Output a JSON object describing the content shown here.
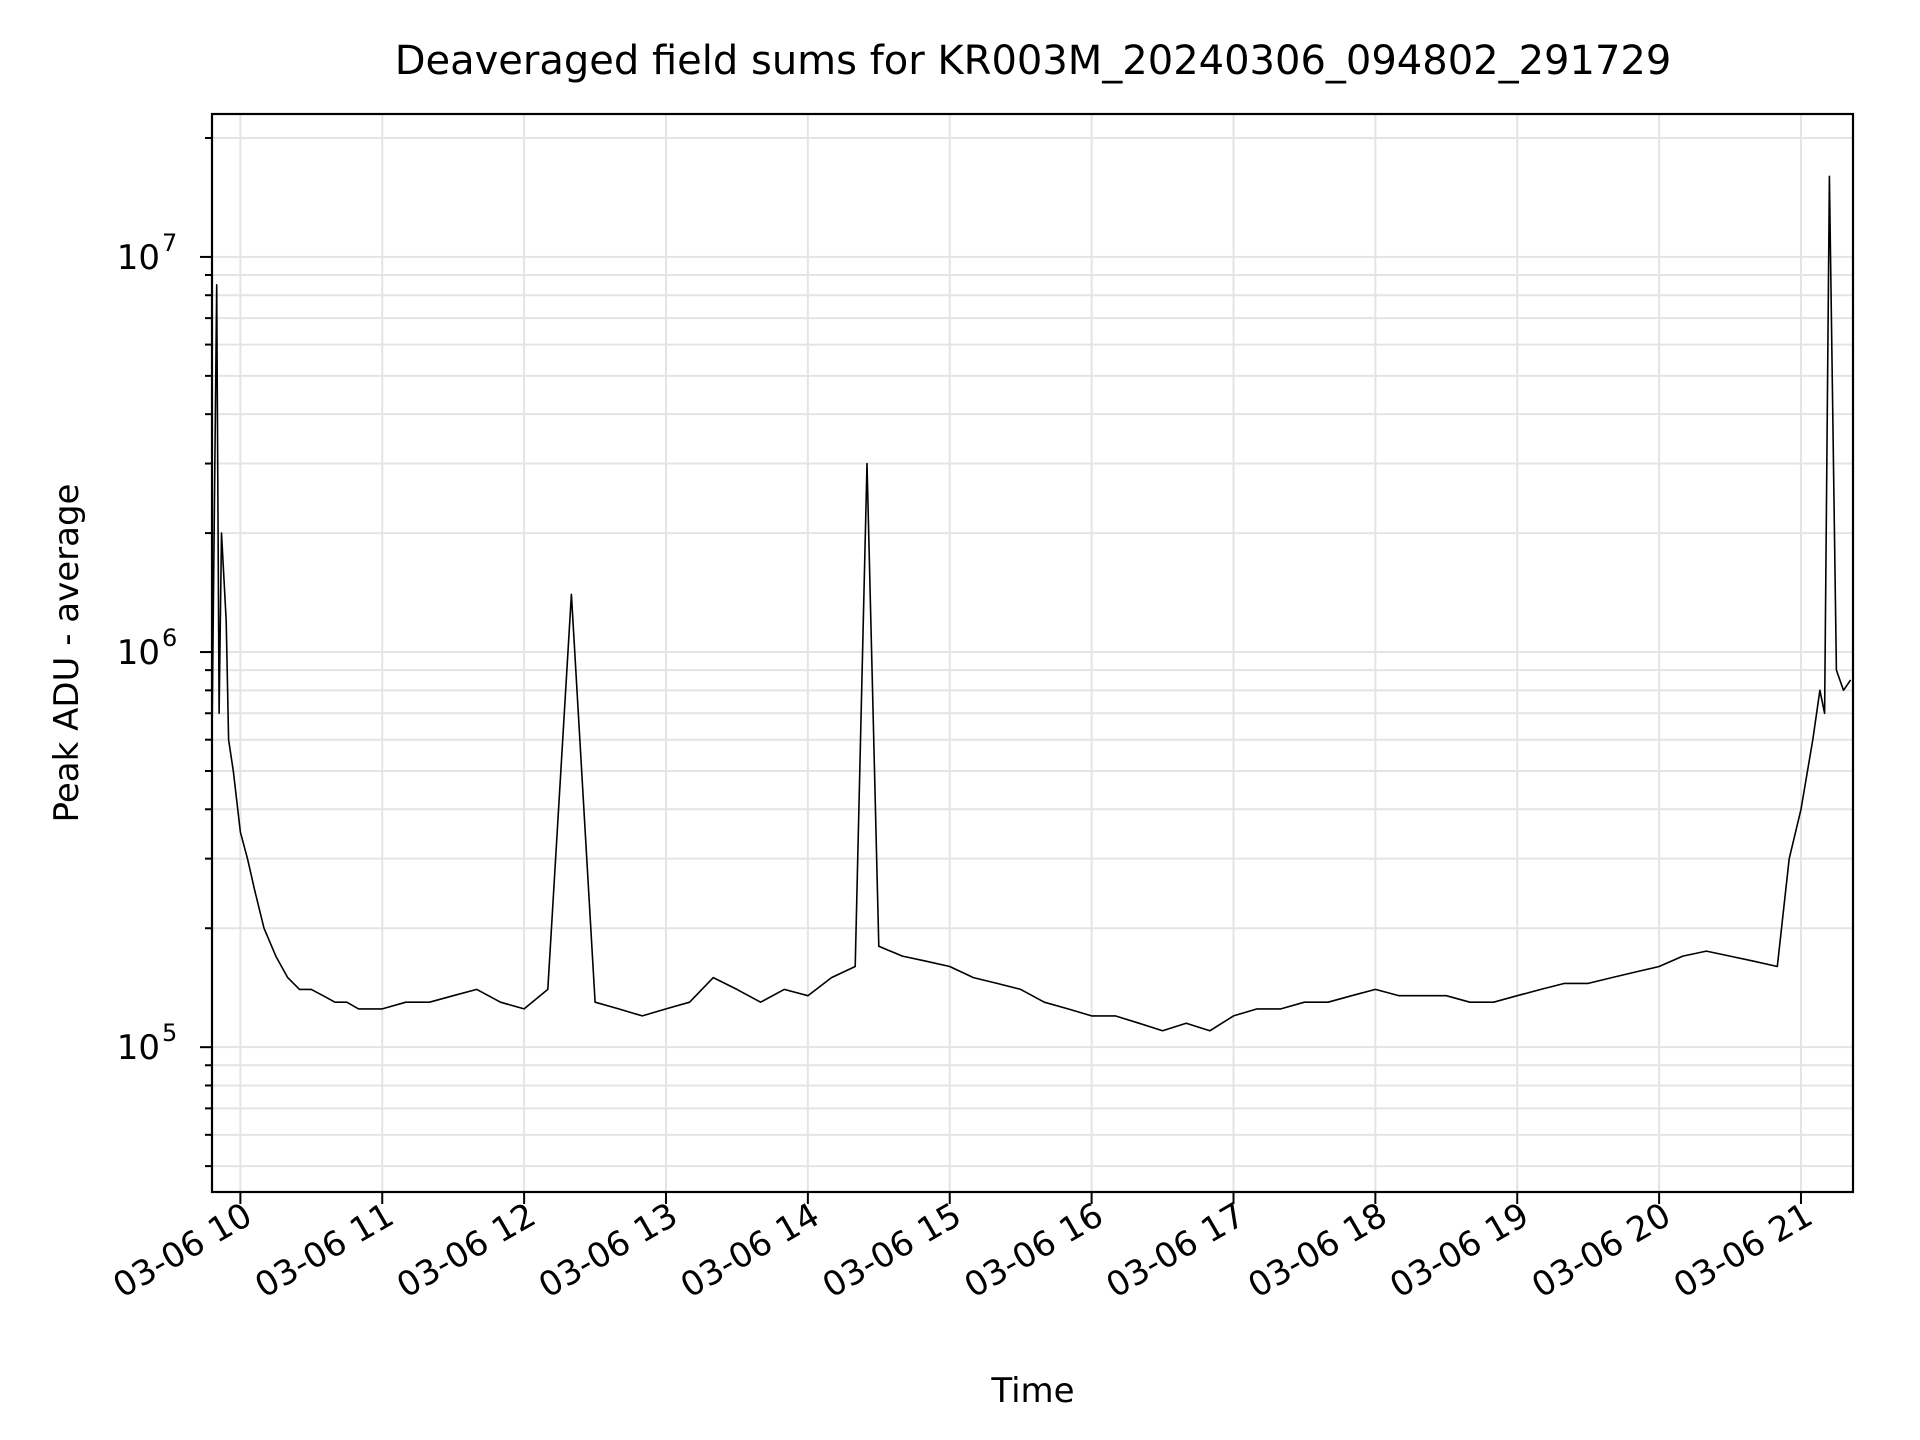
{
  "chart_data": {
    "type": "line",
    "title": "Deaveraged field sums for KR003M_20240306_094802_291729",
    "xlabel": "Time",
    "ylabel": "Peak ADU - average",
    "yscale": "log",
    "xlim": [
      "2024-03-06 09:48",
      "2024-03-06 21:22"
    ],
    "ylim": [
      43000,
      23000000
    ],
    "x_ticks": [
      {
        "label": "03-06 10",
        "value": "2024-03-06 10:00"
      },
      {
        "label": "03-06 11",
        "value": "2024-03-06 11:00"
      },
      {
        "label": "03-06 12",
        "value": "2024-03-06 12:00"
      },
      {
        "label": "03-06 13",
        "value": "2024-03-06 13:00"
      },
      {
        "label": "03-06 14",
        "value": "2024-03-06 14:00"
      },
      {
        "label": "03-06 15",
        "value": "2024-03-06 15:00"
      },
      {
        "label": "03-06 16",
        "value": "2024-03-06 16:00"
      },
      {
        "label": "03-06 17",
        "value": "2024-03-06 17:00"
      },
      {
        "label": "03-06 18",
        "value": "2024-03-06 18:00"
      },
      {
        "label": "03-06 19",
        "value": "2024-03-06 19:00"
      },
      {
        "label": "03-06 20",
        "value": "2024-03-06 20:00"
      },
      {
        "label": "03-06 21",
        "value": "2024-03-06 21:00"
      }
    ],
    "y_ticks": [
      {
        "base": "10",
        "exp": "5",
        "value": 100000
      },
      {
        "base": "10",
        "exp": "6",
        "value": 1000000
      },
      {
        "base": "10",
        "exp": "7",
        "value": 10000000
      }
    ],
    "grid": true,
    "line_color": "#000000",
    "series": [
      {
        "x": [
          "2024-03-06 09:48",
          "2024-03-06 09:50",
          "2024-03-06 09:51",
          "2024-03-06 09:52",
          "2024-03-06 09:54",
          "2024-03-06 09:55",
          "2024-03-06 09:57",
          "2024-03-06 10:00",
          "2024-03-06 10:03",
          "2024-03-06 10:06",
          "2024-03-06 10:10",
          "2024-03-06 10:15",
          "2024-03-06 10:20",
          "2024-03-06 10:25",
          "2024-03-06 10:30",
          "2024-03-06 10:35",
          "2024-03-06 10:40",
          "2024-03-06 10:45",
          "2024-03-06 10:50",
          "2024-03-06 11:00",
          "2024-03-06 11:10",
          "2024-03-06 11:20",
          "2024-03-06 11:30",
          "2024-03-06 11:40",
          "2024-03-06 11:50",
          "2024-03-06 12:00",
          "2024-03-06 12:10",
          "2024-03-06 12:20",
          "2024-03-06 12:30",
          "2024-03-06 12:40",
          "2024-03-06 12:50",
          "2024-03-06 13:00",
          "2024-03-06 13:10",
          "2024-03-06 13:20",
          "2024-03-06 13:30",
          "2024-03-06 13:40",
          "2024-03-06 13:50",
          "2024-03-06 14:00",
          "2024-03-06 14:10",
          "2024-03-06 14:20",
          "2024-03-06 14:25",
          "2024-03-06 14:30",
          "2024-03-06 14:40",
          "2024-03-06 14:50",
          "2024-03-06 15:00",
          "2024-03-06 15:10",
          "2024-03-06 15:20",
          "2024-03-06 15:30",
          "2024-03-06 15:40",
          "2024-03-06 15:50",
          "2024-03-06 16:00",
          "2024-03-06 16:10",
          "2024-03-06 16:20",
          "2024-03-06 16:30",
          "2024-03-06 16:40",
          "2024-03-06 16:50",
          "2024-03-06 17:00",
          "2024-03-06 17:10",
          "2024-03-06 17:20",
          "2024-03-06 17:30",
          "2024-03-06 17:40",
          "2024-03-06 17:50",
          "2024-03-06 18:00",
          "2024-03-06 18:10",
          "2024-03-06 18:20",
          "2024-03-06 18:30",
          "2024-03-06 18:40",
          "2024-03-06 18:50",
          "2024-03-06 19:00",
          "2024-03-06 19:10",
          "2024-03-06 19:20",
          "2024-03-06 19:30",
          "2024-03-06 19:40",
          "2024-03-06 19:50",
          "2024-03-06 20:00",
          "2024-03-06 20:10",
          "2024-03-06 20:20",
          "2024-03-06 20:30",
          "2024-03-06 20:40",
          "2024-03-06 20:50",
          "2024-03-06 20:55",
          "2024-03-06 21:00",
          "2024-03-06 21:05",
          "2024-03-06 21:08",
          "2024-03-06 21:10",
          "2024-03-06 21:12",
          "2024-03-06 21:15",
          "2024-03-06 21:18",
          "2024-03-06 21:21"
        ],
        "y": [
          600000,
          8500000,
          700000,
          2000000,
          1200000,
          600000,
          500000,
          350000,
          300000,
          250000,
          200000,
          170000,
          150000,
          140000,
          140000,
          135000,
          130000,
          130000,
          125000,
          125000,
          130000,
          130000,
          135000,
          140000,
          130000,
          125000,
          140000,
          1400000,
          130000,
          125000,
          120000,
          125000,
          130000,
          150000,
          140000,
          130000,
          140000,
          135000,
          150000,
          160000,
          3000000,
          180000,
          170000,
          165000,
          160000,
          150000,
          145000,
          140000,
          130000,
          125000,
          120000,
          120000,
          115000,
          110000,
          115000,
          110000,
          120000,
          125000,
          125000,
          130000,
          130000,
          135000,
          140000,
          135000,
          135000,
          135000,
          130000,
          130000,
          135000,
          140000,
          145000,
          145000,
          150000,
          155000,
          160000,
          170000,
          175000,
          170000,
          165000,
          160000,
          300000,
          400000,
          600000,
          800000,
          700000,
          16000000,
          900000,
          800000,
          850000
        ]
      }
    ]
  }
}
